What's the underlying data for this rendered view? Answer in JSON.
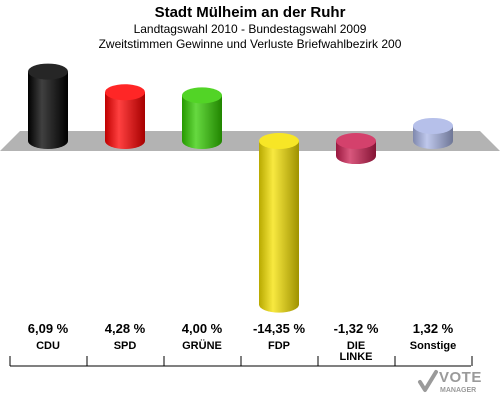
{
  "header": {
    "title": "Stadt Mülheim an der Ruhr",
    "subtitle1": "Landtagswahl 2010 - Bundestagswahl 2009",
    "subtitle2": "Zweitstimmen Gewinne und Verluste Briefwahlbezirk 200"
  },
  "logo": {
    "text": "VOTE",
    "sub": "MANAGER"
  },
  "chart_data": {
    "type": "bar",
    "title": "Stadt Mülheim an der Ruhr",
    "subtitle": "Landtagswahl 2010 - Bundestagswahl 2009 · Zweitstimmen Gewinne und Verluste Briefwahlbezirk 200",
    "categories": [
      "CDU",
      "SPD",
      "GRÜNE",
      "FDP",
      "DIE LINKE",
      "Sonstige"
    ],
    "category_lines": [
      [
        "CDU"
      ],
      [
        "SPD"
      ],
      [
        "GRÜNE"
      ],
      [
        "FDP"
      ],
      [
        "DIE",
        "LINKE"
      ],
      [
        "Sonstige"
      ]
    ],
    "values": [
      6.09,
      4.28,
      4.0,
      -14.35,
      -1.32,
      1.32
    ],
    "value_labels": [
      "6,09 %",
      "4,28 %",
      "4,00 %",
      "-14,35 %",
      "-1,32 %",
      "1,32 %"
    ],
    "colors": [
      "#000000",
      "#ff0000",
      "#33cc00",
      "#f5e100",
      "#cc1f52",
      "#a9b5e6"
    ],
    "unit": "%",
    "grid": false
  }
}
